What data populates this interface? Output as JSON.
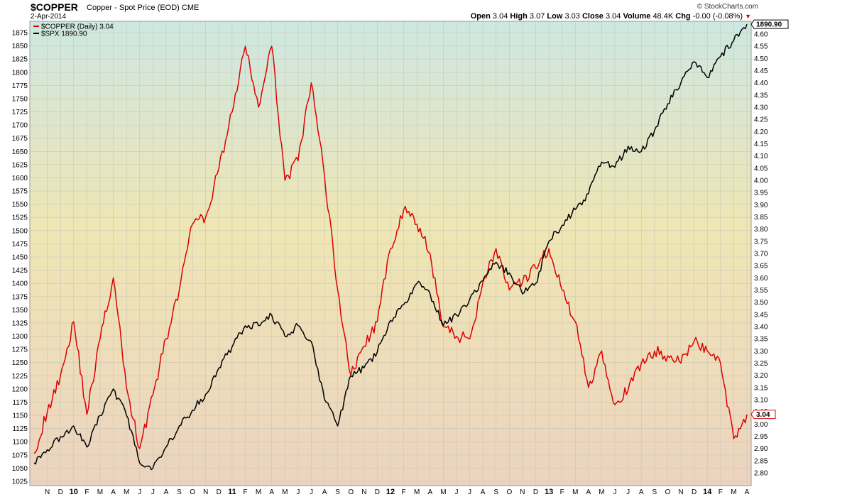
{
  "header": {
    "symbol": "$COPPER",
    "description": "Copper - Spot Price (EOD)",
    "exchange": "CME",
    "date": "2-Apr-2014",
    "brand": "© StockCharts.com",
    "open_label": "Open",
    "open": "3.04",
    "high_label": "High",
    "high": "3.07",
    "low_label": "Low",
    "low": "3.03",
    "close_label": "Close",
    "close": "3.04",
    "volume_label": "Volume",
    "volume": "48.4K",
    "chg_label": "Chg",
    "chg": "-0.00 (-0.08%)"
  },
  "colors": {
    "copper": "#dd0000",
    "spx": "#000000",
    "bg_top": "#cde7e2",
    "bg_mid": "#efe6b3",
    "bg_bottom": "#ecd3c0",
    "grid": "#c8c8b8"
  },
  "chart_data": {
    "type": "line",
    "x": [
      "Oct-2009",
      "Nov-2009",
      "Dec-2009",
      "Jan-2010",
      "Feb-2010",
      "Mar-2010",
      "Apr-2010",
      "May-2010",
      "Jun-2010",
      "Jul-2010",
      "Aug-2010",
      "Sep-2010",
      "Oct-2010",
      "Nov-2010",
      "Dec-2010",
      "Jan-2011",
      "Feb-2011",
      "Mar-2011",
      "Apr-2011",
      "May-2011",
      "Jun-2011",
      "Jul-2011",
      "Aug-2011",
      "Sep-2011",
      "Oct-2011",
      "Nov-2011",
      "Dec-2011",
      "Jan-2012",
      "Feb-2012",
      "Mar-2012",
      "Apr-2012",
      "May-2012",
      "Jun-2012",
      "Jul-2012",
      "Aug-2012",
      "Sep-2012",
      "Oct-2012",
      "Nov-2012",
      "Dec-2012",
      "Jan-2013",
      "Feb-2013",
      "Mar-2013",
      "Apr-2013",
      "May-2013",
      "Jun-2013",
      "Jul-2013",
      "Aug-2013",
      "Sep-2013",
      "Oct-2013",
      "Nov-2013",
      "Dec-2013",
      "Jan-2014",
      "Feb-2014",
      "Mar-2014",
      "Apr-2014"
    ],
    "x_tick_labels": [
      "N",
      "D",
      "10",
      "F",
      "M",
      "A",
      "M",
      "J",
      "J",
      "A",
      "S",
      "O",
      "N",
      "D",
      "11",
      "F",
      "M",
      "A",
      "M",
      "J",
      "J",
      "A",
      "S",
      "O",
      "N",
      "D",
      "12",
      "F",
      "M",
      "A",
      "M",
      "J",
      "J",
      "A",
      "S",
      "O",
      "N",
      "D",
      "13",
      "F",
      "M",
      "A",
      "M",
      "J",
      "J",
      "A",
      "S",
      "O",
      "N",
      "D",
      "14",
      "F",
      "M",
      "A"
    ],
    "series": [
      {
        "name": "$COPPER (Daily) 3.04",
        "axis": "right",
        "color": "#dd0000",
        "values": [
          2.88,
          3.05,
          3.2,
          3.42,
          3.04,
          3.35,
          3.6,
          3.15,
          2.9,
          3.12,
          3.35,
          3.55,
          3.82,
          3.85,
          4.05,
          4.28,
          4.55,
          4.3,
          4.55,
          4.0,
          4.08,
          4.4,
          4.02,
          3.55,
          3.2,
          3.32,
          3.42,
          3.72,
          3.88,
          3.82,
          3.7,
          3.4,
          3.36,
          3.35,
          3.58,
          3.72,
          3.55,
          3.58,
          3.64,
          3.72,
          3.55,
          3.42,
          3.15,
          3.3,
          3.08,
          3.14,
          3.25,
          3.3,
          3.28,
          3.25,
          3.34,
          3.3,
          3.25,
          2.94,
          3.04
        ]
      },
      {
        "name": "$SPX 1890.90",
        "axis": "left",
        "color": "#000000",
        "values": [
          1060,
          1085,
          1110,
          1130,
          1090,
          1150,
          1200,
          1150,
          1060,
          1050,
          1090,
          1130,
          1160,
          1190,
          1240,
          1280,
          1320,
          1320,
          1340,
          1300,
          1320,
          1290,
          1180,
          1130,
          1225,
          1240,
          1270,
          1330,
          1360,
          1400,
          1380,
          1320,
          1340,
          1370,
          1405,
          1440,
          1420,
          1380,
          1400,
          1480,
          1510,
          1540,
          1570,
          1630,
          1620,
          1660,
          1650,
          1690,
          1740,
          1780,
          1820,
          1790,
          1830,
          1860,
          1890.9
        ]
      }
    ],
    "left_axis": {
      "min": 1025,
      "max": 1875,
      "step": 25
    },
    "right_axis": {
      "min": 2.8,
      "max": 4.6,
      "step": 0.05
    },
    "legend": {
      "position": "top-left",
      "entries": [
        "$COPPER (Daily) 3.04",
        "$SPX 1890.90"
      ]
    },
    "end_labels": {
      "left_series": "1890.90",
      "right_series": "3.04"
    },
    "grid": true
  }
}
